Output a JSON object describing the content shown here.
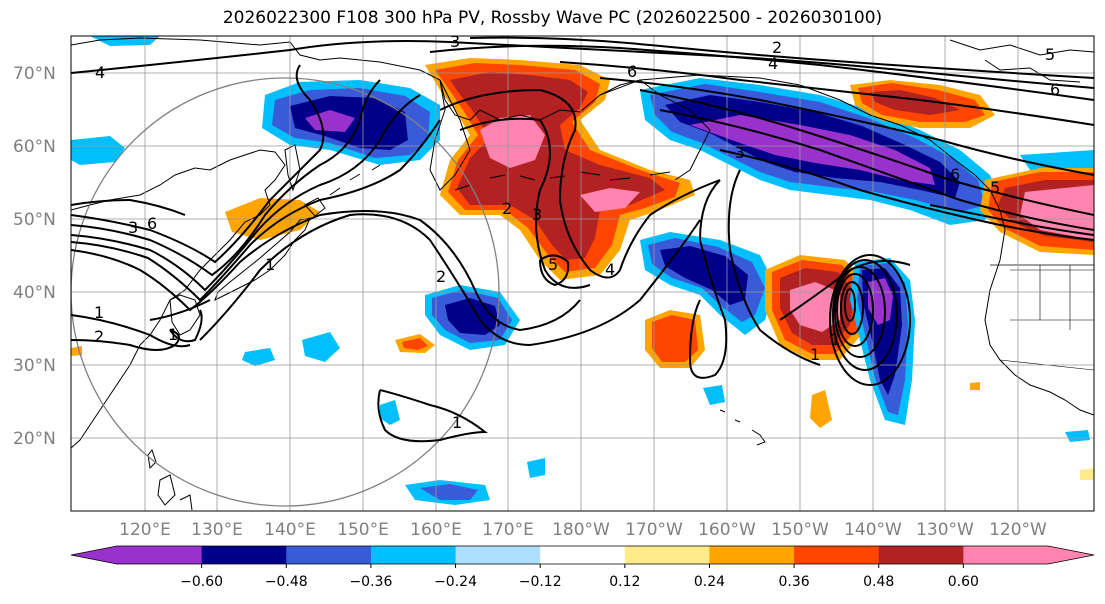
{
  "title": "2026022300 F108 300 hPa PV, Rossby Wave PC (2026022500 - 2026030100)",
  "lat_labels": [
    "70°N",
    "60°N",
    "50°N",
    "40°N",
    "30°N",
    "20°N"
  ],
  "lon_labels": [
    "120°E",
    "130°E",
    "140°E",
    "150°E",
    "160°E",
    "170°E",
    "180°W",
    "170°W",
    "160°W",
    "150°W",
    "140°W",
    "130°W",
    "120°W"
  ],
  "contour_labels": [
    "3",
    "2",
    "4",
    "4",
    "6",
    "6",
    "5",
    "6",
    "3",
    "1",
    "2",
    "3",
    "5",
    "4",
    "2",
    "1",
    "2",
    "1",
    "1",
    "5",
    "6",
    "3",
    "1",
    "1"
  ],
  "colorbar": {
    "ticks": [
      "−0.60",
      "−0.48",
      "−0.36",
      "−0.24",
      "−0.12",
      "0.12",
      "0.24",
      "0.36",
      "0.48",
      "0.60"
    ],
    "colors": [
      "#9932CC",
      "#00008B",
      "#3A5BD9",
      "#00BFFF",
      "#ADDFFF",
      "#FFFFFF",
      "#FFEB8A",
      "#FFA500",
      "#FF4500",
      "#B22222",
      "#FF85B0"
    ]
  },
  "colors": {
    "purple": "#9932CC",
    "navy": "#00008B",
    "blue": "#3A5BD9",
    "sky": "#00BFFF",
    "pale": "#ADDFFF",
    "yellow": "#FFEB8A",
    "orange": "#FFA500",
    "red": "#FF4500",
    "dark_red": "#B22222",
    "pink": "#FF85B0"
  }
}
